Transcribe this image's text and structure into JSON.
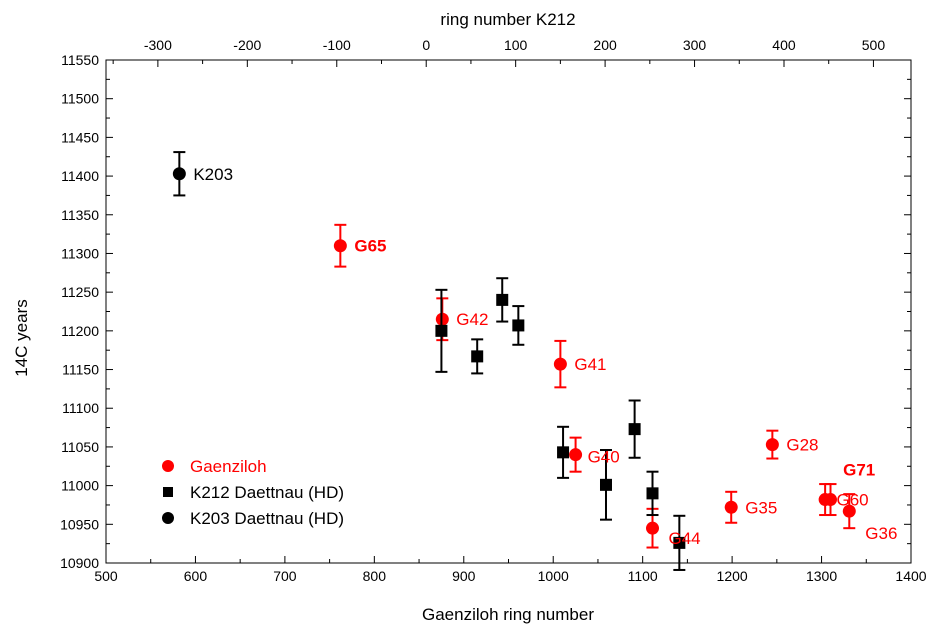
{
  "chart_data": {
    "type": "scatter",
    "title": "",
    "xlabel": "Gaenziloh ring number",
    "ylabel": "14C years",
    "x2label": "ring number K212",
    "xlim": [
      500,
      1400
    ],
    "ylim": [
      10900,
      11550
    ],
    "x_ticks": [
      500,
      600,
      700,
      800,
      900,
      1000,
      1100,
      1200,
      1300,
      1400
    ],
    "y_ticks": [
      10900,
      10950,
      11000,
      11050,
      11100,
      11150,
      11200,
      11250,
      11300,
      11350,
      11400,
      11450,
      11500,
      11550
    ],
    "x2_ticks": [
      -300,
      -200,
      -100,
      0,
      100,
      200,
      300,
      400,
      500
    ],
    "x2_offset": 858,
    "grid": false,
    "legend_position": "bottom-left",
    "colors": {
      "red": "#ff0000",
      "black": "#000000"
    },
    "series": [
      {
        "name": "Gaenziloh",
        "color": "#ff0000",
        "marker": "circle",
        "points": [
          {
            "x": 762,
            "y": 11310,
            "err": 27,
            "label": "G65",
            "bold": true
          },
          {
            "x": 876,
            "y": 11215,
            "err": 27,
            "label": "G42",
            "bold": false
          },
          {
            "x": 1008,
            "y": 11157,
            "err": 30,
            "label": "G41",
            "bold": false
          },
          {
            "x": 1025,
            "y": 11040,
            "err": 22,
            "label": "G40",
            "bold": false
          },
          {
            "x": 1111,
            "y": 10945,
            "err": 25,
            "label": "G44",
            "bold": false
          },
          {
            "x": 1199,
            "y": 10972,
            "err": 20,
            "label": "G35",
            "bold": false
          },
          {
            "x": 1245,
            "y": 11053,
            "err": 18,
            "label": "G28",
            "bold": false
          },
          {
            "x": 1304,
            "y": 10982,
            "err": 20,
            "label": "G71",
            "bold": true
          },
          {
            "x": 1310,
            "y": 10982,
            "err": 20,
            "label": "G60",
            "bold": false
          },
          {
            "x": 1331,
            "y": 10967,
            "err": 22,
            "label": "G36",
            "bold": false
          }
        ]
      },
      {
        "name": "K212 Daettnau (HD)",
        "color": "#000000",
        "marker": "square",
        "points": [
          {
            "x": 875,
            "y": 11200,
            "err": 53
          },
          {
            "x": 915,
            "y": 11167,
            "err": 22
          },
          {
            "x": 943,
            "y": 11240,
            "err": 28
          },
          {
            "x": 961,
            "y": 11207,
            "err": 25
          },
          {
            "x": 1011,
            "y": 11043,
            "err": 33
          },
          {
            "x": 1059,
            "y": 11001,
            "err": 45
          },
          {
            "x": 1091,
            "y": 11073,
            "err": 37
          },
          {
            "x": 1111,
            "y": 10990,
            "err": 28
          },
          {
            "x": 1141,
            "y": 10926,
            "err": 35
          }
        ]
      },
      {
        "name": "K203 Daettnau (HD)",
        "color": "#000000",
        "marker": "circle",
        "points": [
          {
            "x": 582,
            "y": 11403,
            "err": 28,
            "label": "K203",
            "bold": false
          }
        ]
      }
    ]
  }
}
